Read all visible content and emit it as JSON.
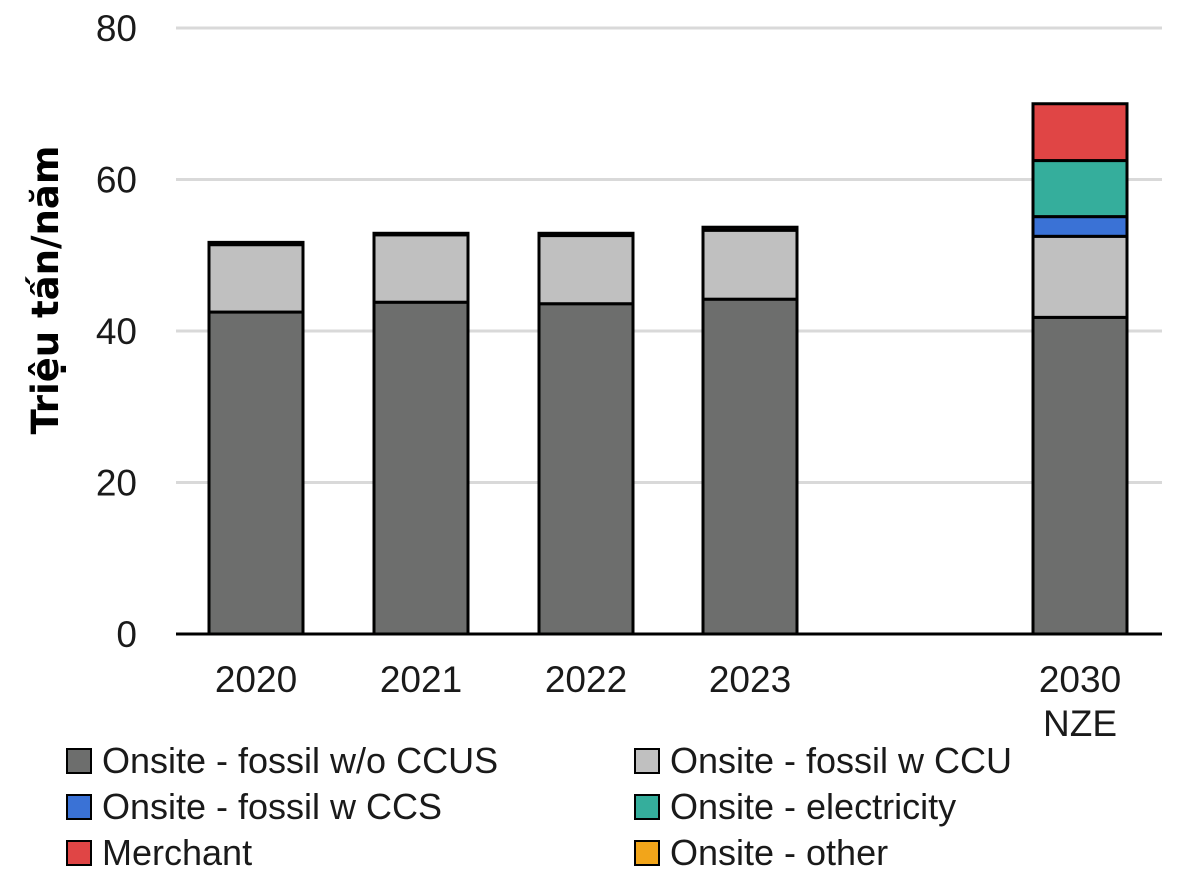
{
  "chart_data": {
    "type": "bar",
    "stacked": true,
    "title": "",
    "xlabel": "",
    "ylabel": "Triệu tấn/năm",
    "ylim": [
      0,
      80
    ],
    "yticks": [
      0,
      20,
      40,
      60,
      80
    ],
    "grid": true,
    "legend_position": "bottom",
    "categories": [
      {
        "id": "2020",
        "lines": [
          "2020"
        ]
      },
      {
        "id": "2021",
        "lines": [
          "2021"
        ]
      },
      {
        "id": "2022",
        "lines": [
          "2022"
        ]
      },
      {
        "id": "2023",
        "lines": [
          "2023"
        ]
      },
      {
        "id": "2030 NZE",
        "lines": [
          "2030",
          "NZE"
        ]
      }
    ],
    "series": [
      {
        "name": "Onsite - fossil w/o CCUS",
        "color": "#6d6e6d",
        "values": [
          42.5,
          43.8,
          43.6,
          44.2,
          41.8
        ]
      },
      {
        "name": "Onsite - fossil w CCU",
        "color": "#c0c0c0",
        "values": [
          8.9,
          8.9,
          9.0,
          9.1,
          10.7
        ]
      },
      {
        "name": "Onsite - fossil w CCS",
        "color": "#3a72d6",
        "values": [
          0.0,
          0.0,
          0.0,
          0.0,
          2.6
        ]
      },
      {
        "name": "Onsite - electricity",
        "color": "#35ae9c",
        "values": [
          0.0,
          0.0,
          0.0,
          0.0,
          7.4
        ]
      },
      {
        "name": "Merchant",
        "color": "#e04545",
        "values": [
          0.3,
          0.2,
          0.3,
          0.4,
          7.5
        ]
      },
      {
        "name": "Onsite - other",
        "color": "#f2a51a",
        "values": [
          0.0,
          0.0,
          0.0,
          0.0,
          0.0
        ]
      }
    ]
  }
}
